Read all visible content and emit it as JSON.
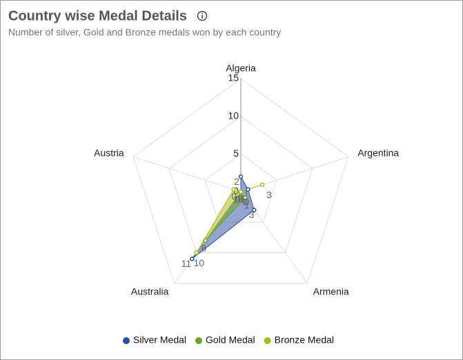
{
  "chart_data": {
    "type": "radar",
    "title": "Country wise Medal Details",
    "subtitle": "Number of silver, Gold and Bronze medals won by each country",
    "categories": [
      "Algeria",
      "Argentina",
      "Armenia",
      "Australia",
      "Austria"
    ],
    "series": [
      {
        "name": "Silver Medal",
        "color": "#2a4ea0",
        "values": [
          2,
          1,
          3,
          11,
          0
        ]
      },
      {
        "name": "Gold Medal",
        "color": "#6aa51e",
        "values": [
          0,
          0,
          1,
          8,
          0
        ]
      },
      {
        "name": "Bronze Medal",
        "color": "#a8b817",
        "values": [
          0,
          3,
          0,
          10,
          1
        ]
      }
    ],
    "ylim": [
      0,
      15
    ],
    "yticks": [
      0,
      5,
      10,
      15
    ],
    "grid": true,
    "legend": "bottom"
  }
}
